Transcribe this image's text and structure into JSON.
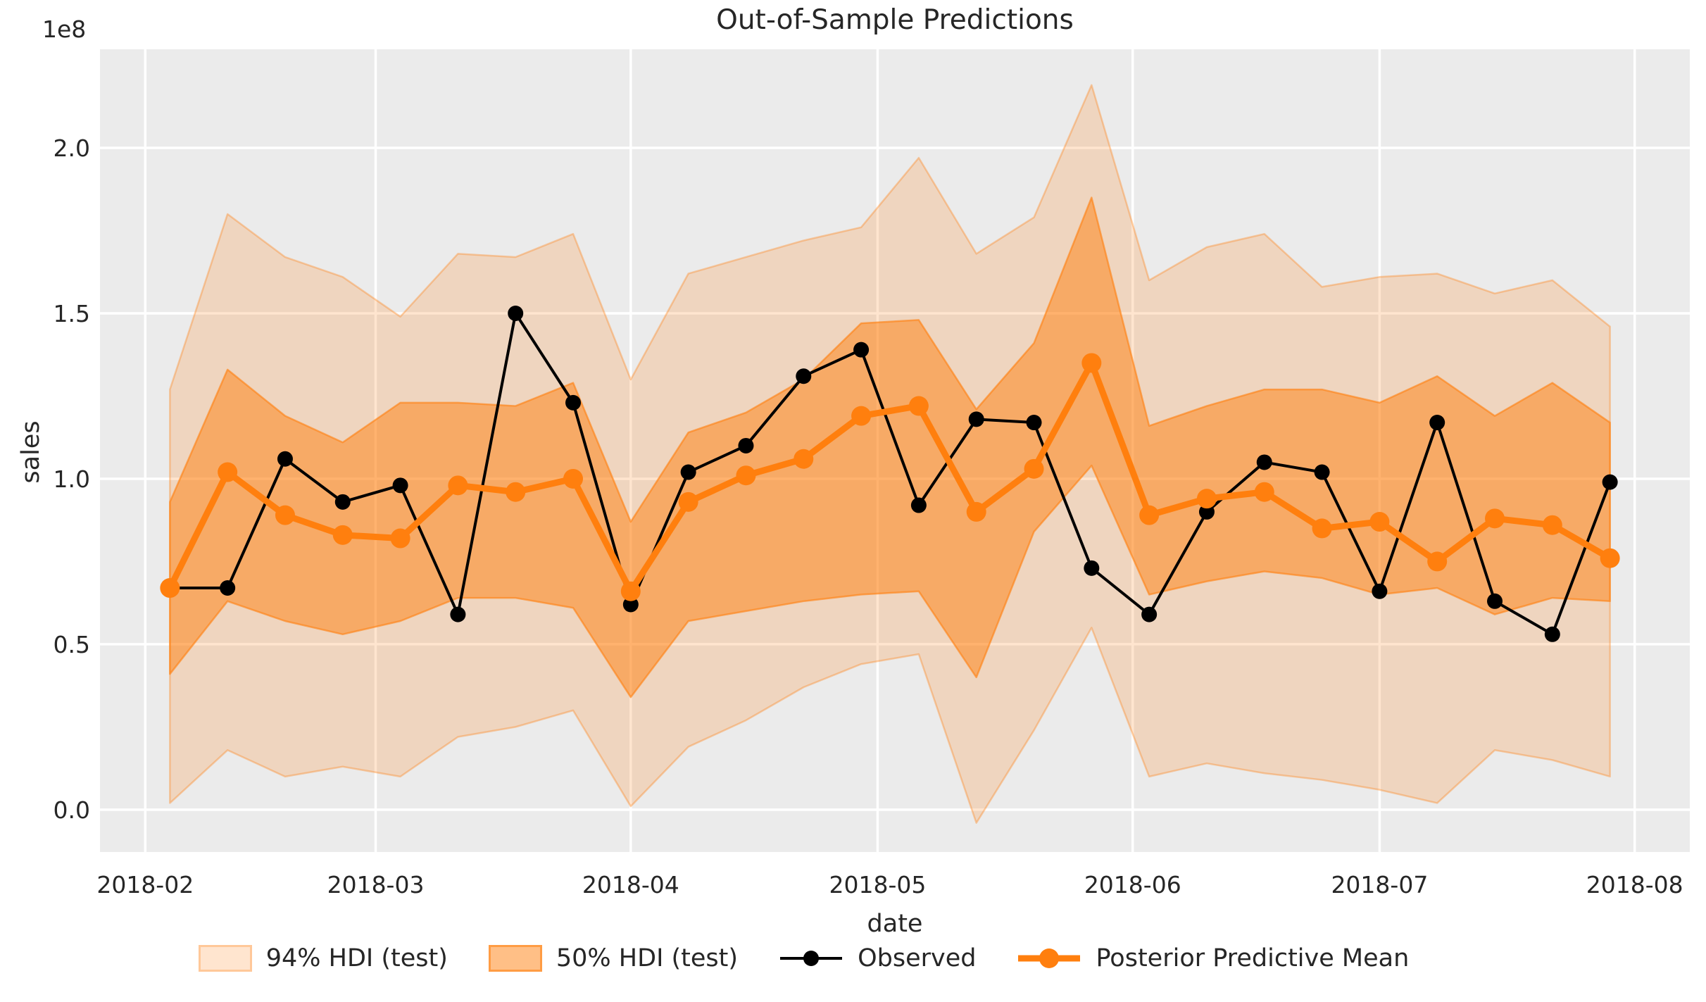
{
  "title": "Out-of-Sample Predictions",
  "axes": {
    "xlabel": "date",
    "ylabel": "sales",
    "offset_label": "1e8",
    "background": "#ebebeb",
    "grid_color": "#ffffff",
    "text_color": "#262626"
  },
  "legend": {
    "items": [
      {
        "label": "94% HDI (test)",
        "type": "patch",
        "color": "rgba(255,127,14,0.2)"
      },
      {
        "label": "50% HDI (test)",
        "type": "patch",
        "color": "rgba(255,127,14,0.5)"
      },
      {
        "label": "Observed",
        "type": "line-marker",
        "color": "#000000"
      },
      {
        "label": "Posterior Predictive Mean",
        "type": "line-marker",
        "color": "#ff7f0e"
      }
    ],
    "position": "bottom"
  },
  "chart_data": {
    "type": "line",
    "title": "Out-of-Sample Predictions",
    "xlabel": "date",
    "ylabel": "sales",
    "y_scale_factor": "1e8",
    "grid": true,
    "legend_position": "bottom",
    "x_dates": [
      "2018-02-04",
      "2018-02-11",
      "2018-02-18",
      "2018-02-25",
      "2018-03-04",
      "2018-03-11",
      "2018-03-18",
      "2018-03-25",
      "2018-04-01",
      "2018-04-08",
      "2018-04-15",
      "2018-04-22",
      "2018-04-29",
      "2018-05-06",
      "2018-05-13",
      "2018-05-20",
      "2018-05-27",
      "2018-06-03",
      "2018-06-10",
      "2018-06-17",
      "2018-06-24",
      "2018-07-01",
      "2018-07-08",
      "2018-07-15",
      "2018-07-22",
      "2018-07-29"
    ],
    "x_days": [
      3,
      10,
      17,
      24,
      31,
      38,
      45,
      52,
      59,
      66,
      73,
      80,
      87,
      94,
      101,
      108,
      115,
      122,
      129,
      136,
      143,
      150,
      157,
      164,
      171,
      178
    ],
    "series": [
      {
        "name": "Observed",
        "color": "#000000",
        "line_width": 4,
        "marker_radius": 11,
        "values": [
          0.67,
          0.67,
          1.06,
          0.93,
          0.98,
          0.59,
          1.5,
          1.23,
          0.62,
          1.02,
          1.1,
          1.31,
          1.39,
          0.92,
          1.18,
          1.17,
          0.73,
          0.59,
          0.9,
          1.05,
          1.02,
          0.66,
          1.17,
          0.63,
          0.53,
          0.99
        ]
      },
      {
        "name": "Posterior Predictive Mean",
        "color": "#ff7f0e",
        "line_width": 9,
        "marker_radius": 14,
        "values": [
          0.67,
          1.02,
          0.89,
          0.83,
          0.82,
          0.98,
          0.96,
          1.0,
          0.66,
          0.93,
          1.01,
          1.06,
          1.19,
          1.22,
          0.9,
          1.03,
          1.35,
          0.89,
          0.94,
          0.96,
          0.85,
          0.87,
          0.75,
          0.88,
          0.86,
          0.76
        ]
      }
    ],
    "bands": [
      {
        "name": "94% HDI (test)",
        "fill": "rgba(255,127,14,0.2)",
        "edge": "rgba(255,127,14,0.35)",
        "hi": [
          1.27,
          1.8,
          1.67,
          1.61,
          1.49,
          1.68,
          1.67,
          1.74,
          1.3,
          1.62,
          1.67,
          1.72,
          1.76,
          1.97,
          1.68,
          1.79,
          2.19,
          1.6,
          1.7,
          1.74,
          1.58,
          1.61,
          1.62,
          1.56,
          1.6,
          1.46
        ],
        "lo": [
          0.02,
          0.18,
          0.1,
          0.13,
          0.1,
          0.22,
          0.25,
          0.3,
          0.01,
          0.19,
          0.27,
          0.37,
          0.44,
          0.47,
          -0.04,
          0.24,
          0.55,
          0.1,
          0.14,
          0.11,
          0.09,
          0.06,
          0.02,
          0.18,
          0.15,
          0.1
        ]
      },
      {
        "name": "50% HDI (test)",
        "fill": "rgba(255,127,14,0.5)",
        "edge": "rgba(255,127,14,0.6)",
        "hi": [
          0.93,
          1.33,
          1.19,
          1.11,
          1.23,
          1.23,
          1.22,
          1.29,
          0.87,
          1.14,
          1.2,
          1.3,
          1.47,
          1.48,
          1.21,
          1.41,
          1.85,
          1.16,
          1.22,
          1.27,
          1.27,
          1.23,
          1.31,
          1.19,
          1.29,
          1.17
        ],
        "lo": [
          0.41,
          0.63,
          0.57,
          0.53,
          0.57,
          0.64,
          0.64,
          0.61,
          0.34,
          0.57,
          0.6,
          0.63,
          0.65,
          0.66,
          0.4,
          0.84,
          1.04,
          0.65,
          0.69,
          0.72,
          0.7,
          0.65,
          0.67,
          0.59,
          0.64,
          0.63
        ]
      }
    ],
    "xticks": {
      "days": [
        0,
        28,
        59,
        89,
        120,
        150,
        181
      ],
      "labels": [
        "2018-02",
        "2018-03",
        "2018-04",
        "2018-05",
        "2018-06",
        "2018-07",
        "2018-08"
      ]
    },
    "yticks": {
      "values": [
        0.0,
        0.5,
        1.0,
        1.5,
        2.0
      ],
      "labels": [
        "0.0",
        "0.5",
        "1.0",
        "1.5",
        "2.0"
      ]
    },
    "xlim": [
      -5.5,
      187.7
    ],
    "ylim": [
      -0.128,
      2.298
    ]
  }
}
